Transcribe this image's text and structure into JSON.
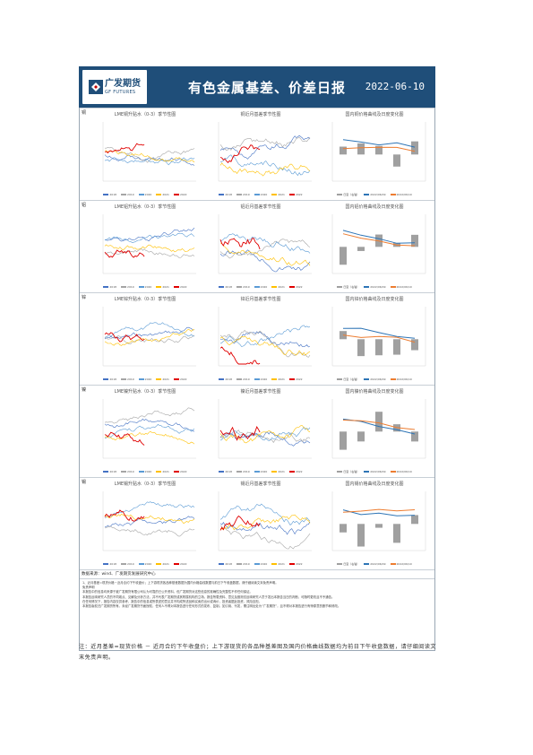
{
  "header": {
    "logo_cn": "广发期货",
    "logo_en": "GF FUTURES",
    "title": "有色金属基差、价差日报",
    "date": "2022-06-10"
  },
  "sections": [
    {
      "label": "铜",
      "c1": "LME铜升贴水（0-3）季节性图",
      "c2": "铜近月基差季节性图",
      "c3": "国内铜价格曲线及日度变化图"
    },
    {
      "label": "铝",
      "c1": "LME铝升贴水（0-3）季节性图",
      "c2": "铝近月基差季节性图",
      "c3": "国内铝价格曲线及日度变化图"
    },
    {
      "label": "锌",
      "c1": "LME锌升贴水（0-3）季节性图",
      "c2": "锌近月基差季节性图",
      "c3": "国内锌价格曲线及日度变化图"
    },
    {
      "label": "镍",
      "c1": "LME镍升贴水（0-3）季节性图",
      "c2": "镍近月基差季节性图",
      "c3": "国内镍价格曲线及日度变化图"
    },
    {
      "label": "锡",
      "c1": "LME锡升贴水（0-3）季节性图",
      "c2": "锡近月基差季节性图",
      "c3": "国内锡价格曲线及日度变化图"
    }
  ],
  "legend_years": [
    "2018",
    "2019",
    "2020",
    "2021",
    "2022"
  ],
  "legend_curve": [
    "日变（右轴）",
    "2022/06/09",
    "2022/06/10"
  ],
  "colors": {
    "y2018": "#4472c4",
    "y2019": "#a5a5a5",
    "y2020": "#5b9bd5",
    "y2021": "#ffc000",
    "y2022": "#e00000",
    "curve_blue": "#2e75b6",
    "curve_orange": "#ed7d31",
    "bar_gray": "#a0a0a0"
  },
  "source": "数据来源：wind、广发期货发展研究中心",
  "notes": [
    "1、近月基差=现货价格－近月合约下午收盘价；上下游现货各品种基差数据为国内价格曲线数据与前日下午收盘数据，请仔细阅读文末免责声明。",
    "免责声明",
    "本报告中的信息均来源于被广发期货有限公司认为可靠的已公开资料，但广发期货对这些信息的准确性及完整性不作任何保证。",
    "本报告反映研究人员的不同观点、见解及分析方法，并不代表广发期货或其附属机构的立场。报告所载资料、意见及推测仅反映研究人员于发出本报告当日的判断，可随时更改且不予通告。",
    "在任何情况下，报告内容仅供参考，报告中的信息或所表述的意见并不构成所述品种买卖的出价或询价，投资者据此投资，风险自担。",
    "本报告版权归广发期货所有。未经广发期货书面授权，任何人不得对本报告进行任何形式的发布、复制。如引用、刊发，需注明出处为“广发期货”，且不得对本报告进行有悖原意的删节和修改。"
  ],
  "footnote": "注：近月基差=现货价格 － 近月合约下午收盘价；上下游现货的各品种基差图及国内价格曲线数据均为前日下午收盘数据，请仔细阅读文末免责声明。"
}
